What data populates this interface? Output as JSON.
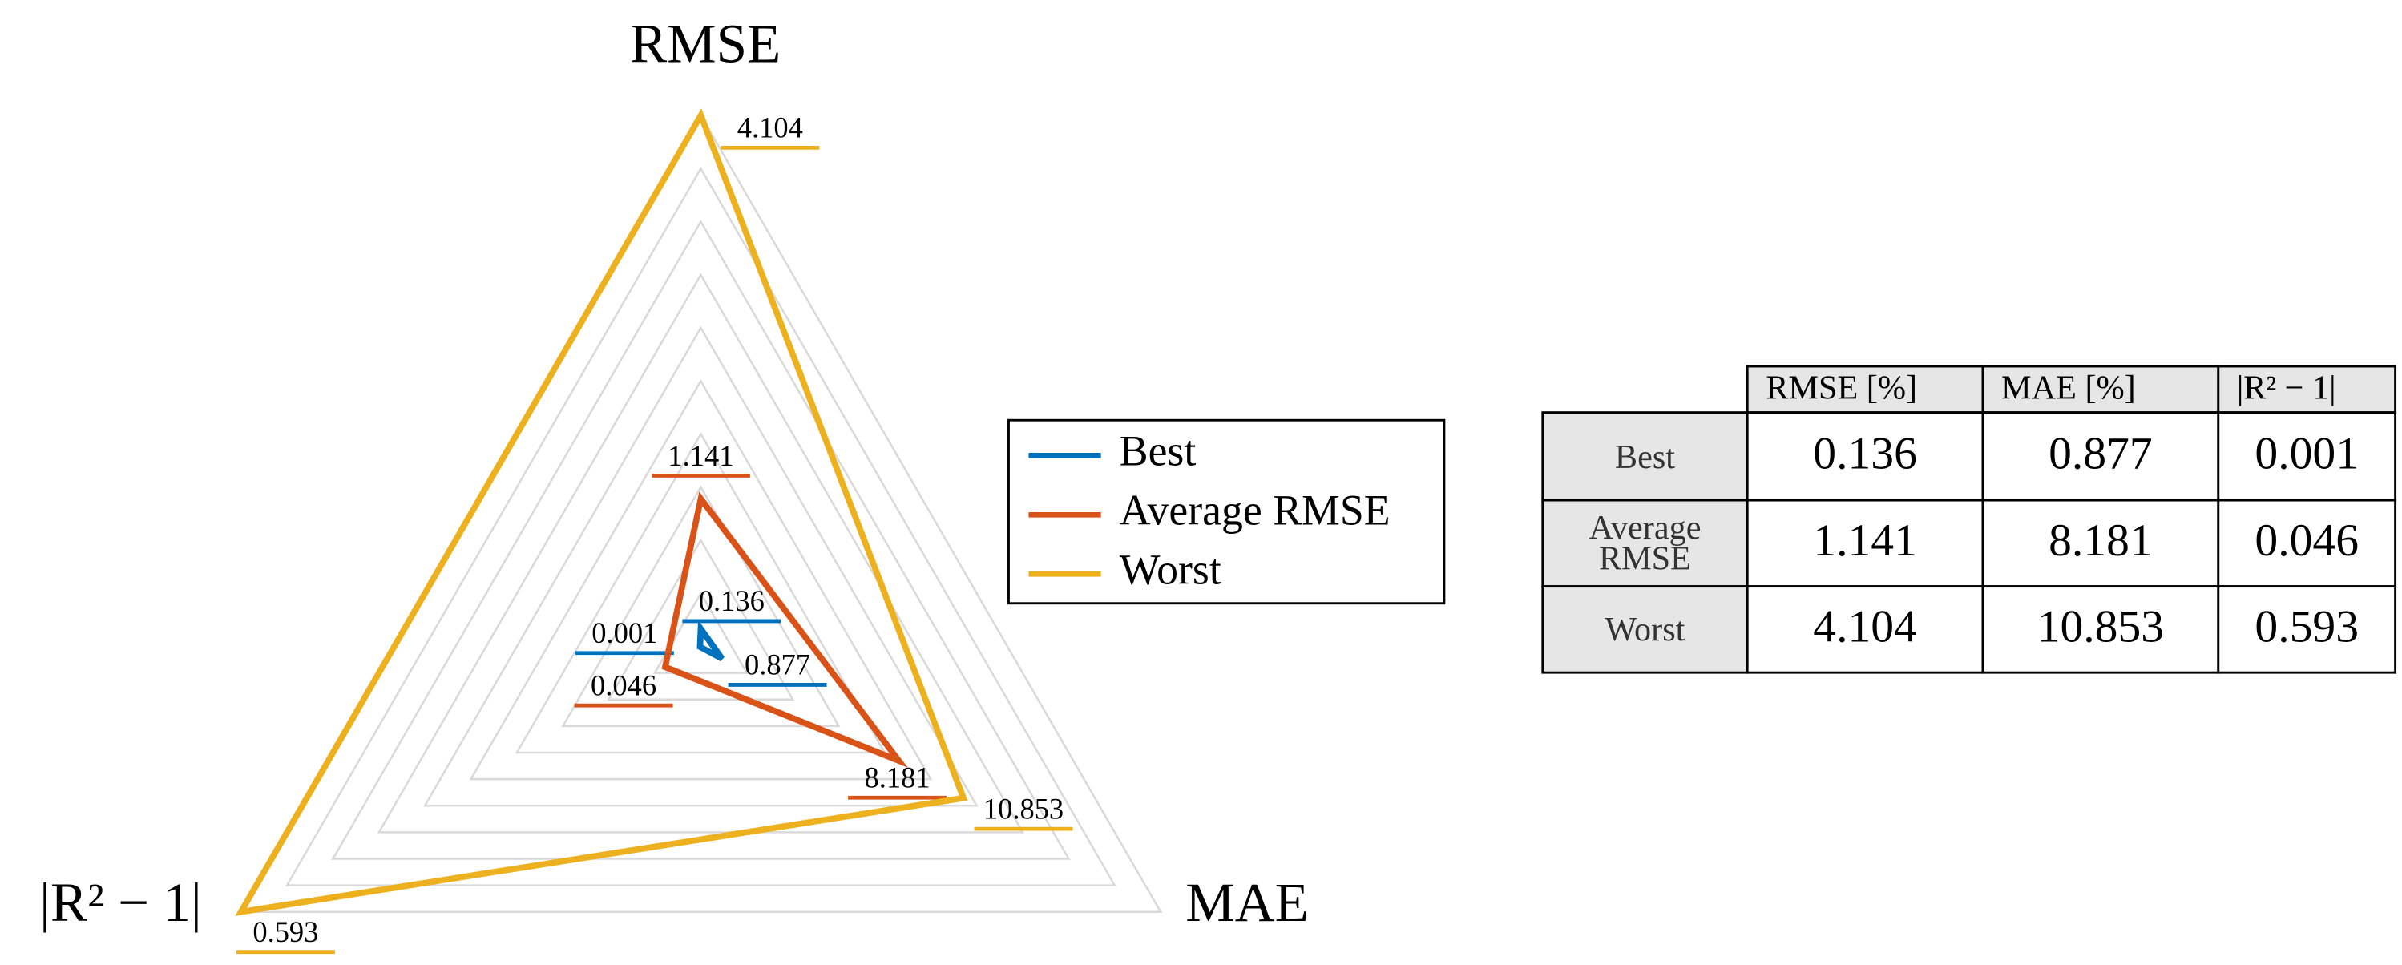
{
  "chart_data": {
    "type": "radar",
    "axes": [
      "RMSE",
      "MAE",
      "|R² − 1|"
    ],
    "rlim": [
      [
        0,
        4.104
      ],
      [
        0,
        19
      ],
      [
        0,
        0.593
      ]
    ],
    "grid_levels": 10,
    "series": [
      {
        "name": "Best",
        "color": "#0072bd",
        "values": [
          0.136,
          0.877,
          0.001
        ]
      },
      {
        "name": "Average RMSE",
        "color": "#d95319",
        "values": [
          1.141,
          8.181,
          0.046
        ]
      },
      {
        "name": "Worst",
        "color": "#edb120",
        "values": [
          4.104,
          10.853,
          0.593
        ]
      }
    ]
  },
  "table": {
    "columns": [
      "RMSE [%]",
      "MAE [%]",
      "|R² − 1|"
    ]
  }
}
